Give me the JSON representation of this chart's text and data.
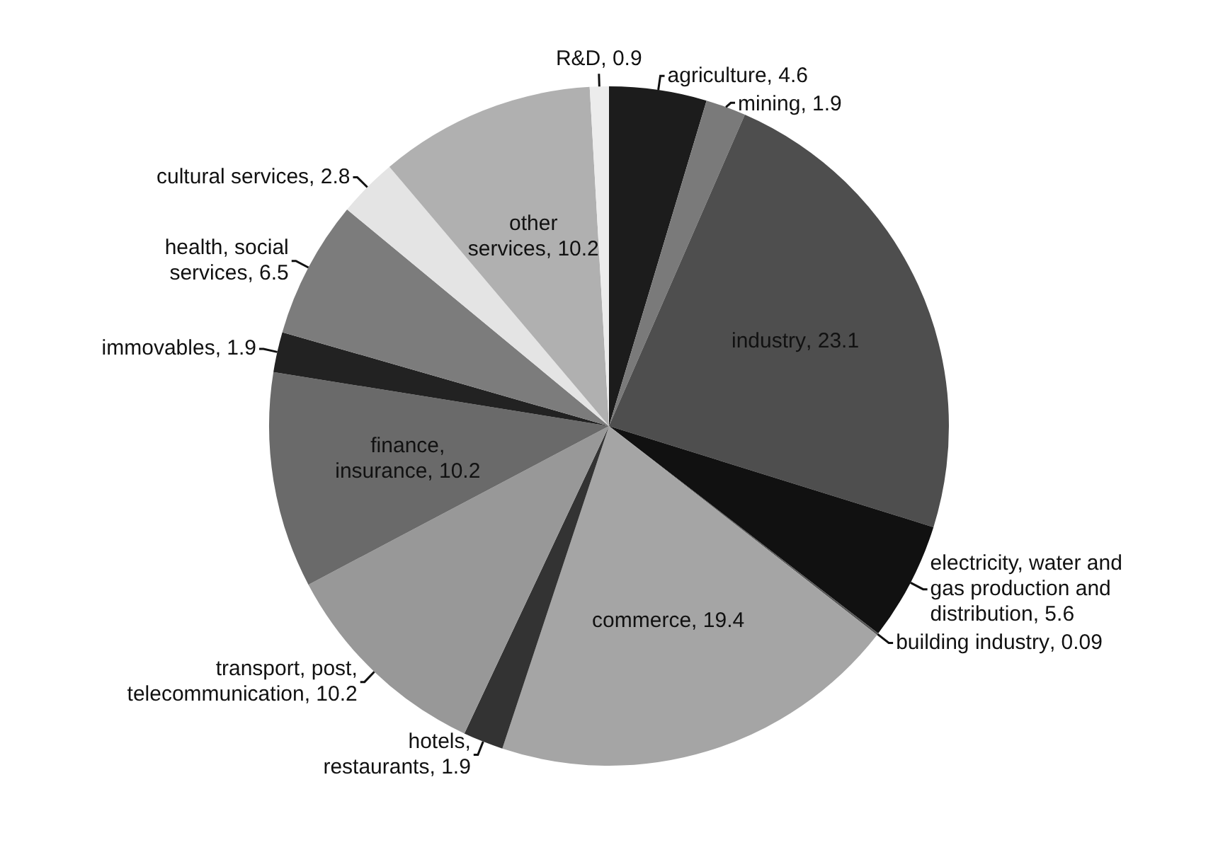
{
  "chart_data": {
    "type": "pie",
    "categories": [
      "agriculture",
      "mining",
      "industry",
      "electricity, water and gas production and distribution",
      "building industry",
      "commerce",
      "hotels, restaurants",
      "transport, post, telecommunication",
      "finance, insurance",
      "immovables",
      "health, social services",
      "cultural services",
      "other services",
      "R&D"
    ],
    "values": [
      4.6,
      1.9,
      23.1,
      5.6,
      0.09,
      19.4,
      1.9,
      10.2,
      10.2,
      1.9,
      6.5,
      2.8,
      10.2,
      0.9
    ],
    "colors": [
      "#1c1c1c",
      "#7a7a7a",
      "#4e4e4e",
      "#111111",
      "#555555",
      "#a5a5a5",
      "#333333",
      "#989898",
      "#6a6a6a",
      "#222222",
      "#7c7c7c",
      "#e4e4e4",
      "#b0b0b0",
      "#ececec"
    ],
    "value_labels": [
      ", 4.6",
      ", 1.9",
      ", 23.1",
      ", 5.6",
      ", 0.09",
      ", 19.4",
      ", 1.9",
      ", 10.2",
      ", 10.2",
      ", 1.9",
      ", 6.5",
      ", 2.8",
      ", 10.2",
      ", 0.9"
    ],
    "legend": false
  }
}
